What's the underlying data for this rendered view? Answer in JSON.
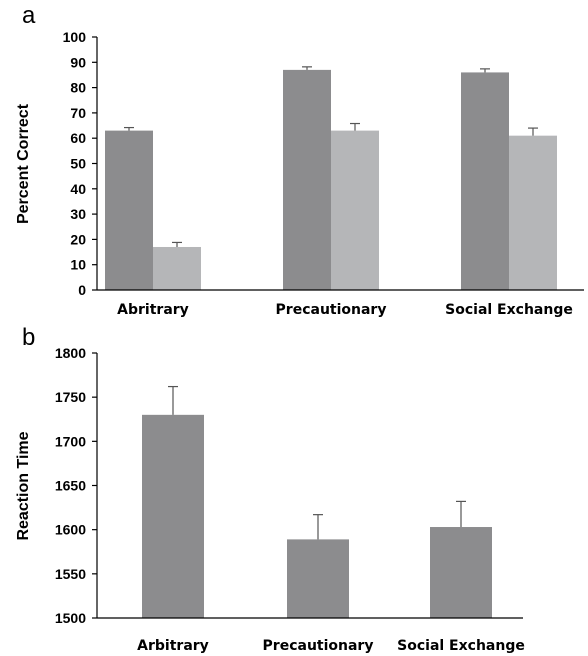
{
  "colors": {
    "series_dark": "#8c8c8e",
    "series_light": "#b5b6b8",
    "error_bar": "#555555"
  },
  "chart_data": [
    {
      "panel": "a",
      "type": "bar",
      "categories": [
        "Abritrary",
        "Precautionary",
        "Social Exchange"
      ],
      "series": [
        {
          "values": [
            63,
            87,
            86
          ],
          "errors": [
            1.2,
            1.2,
            1.4
          ]
        },
        {
          "values": [
            17,
            63,
            61
          ],
          "errors": [
            1.8,
            2.8,
            3.0
          ]
        }
      ],
      "xlabel": "",
      "ylabel": "Percent Correct",
      "ylim": [
        0,
        100
      ],
      "yticks": [
        0,
        10,
        20,
        30,
        40,
        50,
        60,
        70,
        80,
        90,
        100
      ],
      "grid": false,
      "legend": "none"
    },
    {
      "panel": "b",
      "type": "bar",
      "categories": [
        "Arbitrary",
        "Precautionary",
        "Social Exchange"
      ],
      "series": [
        {
          "values": [
            1730,
            1589,
            1603
          ],
          "errors": [
            32,
            28,
            29
          ]
        }
      ],
      "xlabel": "",
      "ylabel": "Reaction Time",
      "ylim": [
        1500,
        1800
      ],
      "yticks": [
        1500,
        1550,
        1600,
        1650,
        1700,
        1750,
        1800
      ],
      "grid": false,
      "legend": "none"
    }
  ]
}
